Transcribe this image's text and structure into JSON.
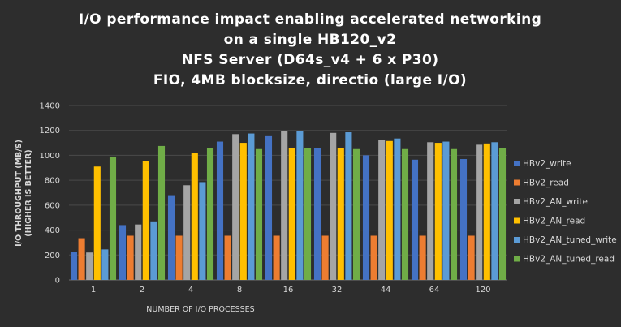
{
  "chart_data": {
    "type": "bar",
    "title_lines": [
      "I/O performance  impact  enabling  accelerated  networking",
      "on a single  HB120_v2",
      "NFS Server  (D64s_v4  +  6  x  P30)",
      "FIO,  4MB blocksize,  directio  (large  I/O)"
    ],
    "xlabel": "NUMBER OF I/O PROCESSES",
    "ylabel_lines": [
      "I/O THROUGHPUT (MB/S)",
      "(HIGHER IS BETTER)"
    ],
    "ylim": [
      0,
      1400
    ],
    "yticks": [
      0,
      200,
      400,
      600,
      800,
      1000,
      1200,
      1400
    ],
    "grid": true,
    "legend_position": "right",
    "categories": [
      "1",
      "2",
      "4",
      "8",
      "16",
      "32",
      "44",
      "64",
      "120"
    ],
    "series": [
      {
        "name": "HBv2_write",
        "color": "#4472c4",
        "values": [
          225,
          440,
          680,
          1110,
          1160,
          1055,
          1000,
          965,
          970
        ]
      },
      {
        "name": "HBv2_read",
        "color": "#ed7d31",
        "values": [
          335,
          355,
          355,
          355,
          355,
          355,
          355,
          355,
          355
        ]
      },
      {
        "name": "HBv2_AN_write",
        "color": "#a5a5a5",
        "values": [
          220,
          445,
          760,
          1170,
          1195,
          1180,
          1125,
          1105,
          1085
        ]
      },
      {
        "name": "HBv2_AN_read",
        "color": "#ffc000",
        "values": [
          910,
          955,
          1020,
          1100,
          1060,
          1060,
          1115,
          1100,
          1095
        ]
      },
      {
        "name": "HBv2_AN_tuned_write",
        "color": "#5b9bd5",
        "values": [
          245,
          470,
          785,
          1175,
          1195,
          1185,
          1135,
          1110,
          1105
        ]
      },
      {
        "name": "HBv2_AN_tuned_read",
        "color": "#70ad47",
        "values": [
          990,
          1075,
          1055,
          1050,
          1055,
          1050,
          1050,
          1050,
          1060
        ]
      }
    ]
  }
}
